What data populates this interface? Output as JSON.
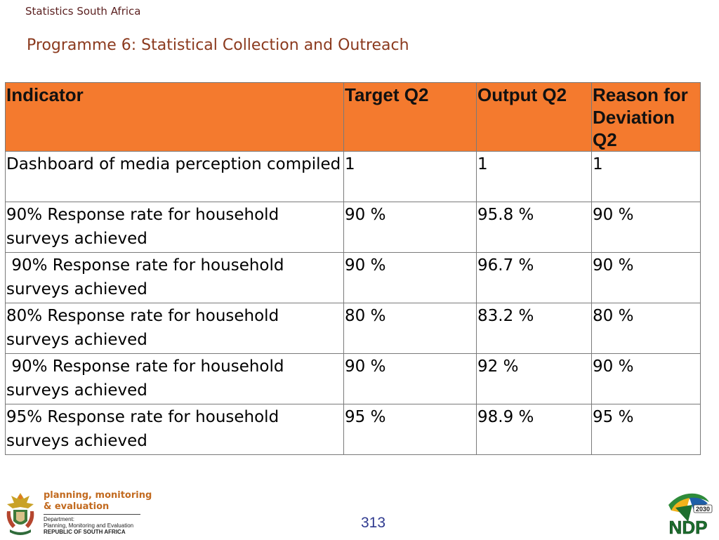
{
  "header": {
    "organisation": "Statistics South Africa",
    "title": "Programme 6:  Statistical Collection and Outreach"
  },
  "table": {
    "columns": [
      "Indicator",
      "Target Q2",
      "Output Q2",
      "Reason for Deviation Q2"
    ],
    "rows": [
      [
        "Dashboard of media perception compiled",
        "1",
        "1",
        "1"
      ],
      [
        "90% Response rate for household surveys achieved",
        "90 %",
        "95.8 %",
        "90 %"
      ],
      [
        " 90% Response rate for household surveys achieved",
        "90 %",
        "96.7 %",
        "90 %"
      ],
      [
        "80% Response rate for household surveys achieved",
        "80 %",
        "83.2 %",
        "80 %"
      ],
      [
        " 90% Response rate for household surveys achieved",
        "90 %",
        "92 %",
        "90 %"
      ],
      [
        "95% Response rate for household surveys achieved",
        "95 %",
        "98.9 %",
        "95 %"
      ]
    ]
  },
  "footer": {
    "page_number": "313",
    "dpme_line1": "planning, monitoring",
    "dpme_line2": "& evaluation",
    "dpme_dept1": "Department:",
    "dpme_dept2": "Planning, Monitoring and Evaluation",
    "dpme_dept3": "REPUBLIC OF SOUTH AFRICA",
    "ndp_year": "2030",
    "ndp_text": "NDP"
  },
  "colors": {
    "header_fill": "#f47a2e",
    "title_color": "#8b3a1e",
    "page_number_color": "#2f3a8f"
  },
  "icons": [
    "coat-of-arms-icon",
    "ndp-logo-icon"
  ]
}
